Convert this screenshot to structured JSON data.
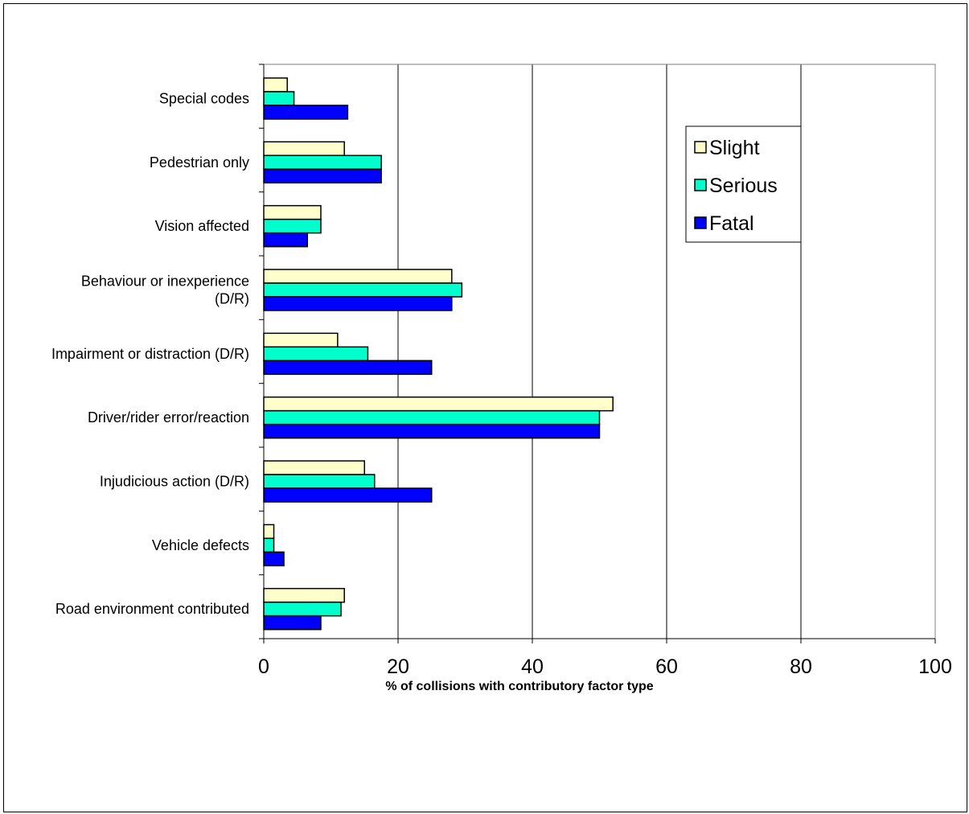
{
  "chart_data": {
    "type": "bar",
    "orientation": "horizontal",
    "categories": [
      "Special codes",
      "Pedestrian only",
      "Vision affected",
      "Behaviour or inexperience (D/R)",
      "Impairment or distraction (D/R)",
      "Driver/rider error/reaction",
      "Injudicious action (D/R)",
      "Vehicle defects",
      "Road environment contributed"
    ],
    "category_label_lines": [
      [
        "Special codes"
      ],
      [
        "Pedestrian only"
      ],
      [
        "Vision affected"
      ],
      [
        "Behaviour or inexperience",
        "(D/R)"
      ],
      [
        "Impairment or distraction (D/R)"
      ],
      [
        "Driver/rider error/reaction"
      ],
      [
        "Injudicious action (D/R)"
      ],
      [
        "Vehicle defects"
      ],
      [
        "Road environment contributed"
      ]
    ],
    "series": [
      {
        "name": "Slight",
        "color": "#FFFFCC",
        "values": [
          3.5,
          12,
          8.5,
          28,
          11,
          52,
          15,
          1.5,
          12
        ]
      },
      {
        "name": "Serious",
        "color": "#00FFCC",
        "values": [
          4.5,
          17.5,
          8.5,
          29.5,
          15.5,
          50,
          16.5,
          1.5,
          11.5
        ]
      },
      {
        "name": "Fatal",
        "color": "#0000FF",
        "values": [
          12.5,
          17.5,
          6.5,
          28,
          25,
          50,
          25,
          3,
          8.5
        ]
      }
    ],
    "xlim": [
      0,
      100
    ],
    "xticks": [
      "0",
      "20",
      "40",
      "60",
      "80",
      "100"
    ],
    "xlabel": "% of collisions with contributory factor type",
    "ylabel": "",
    "title": "",
    "grid": "vertical",
    "legend_position": "top-right"
  }
}
